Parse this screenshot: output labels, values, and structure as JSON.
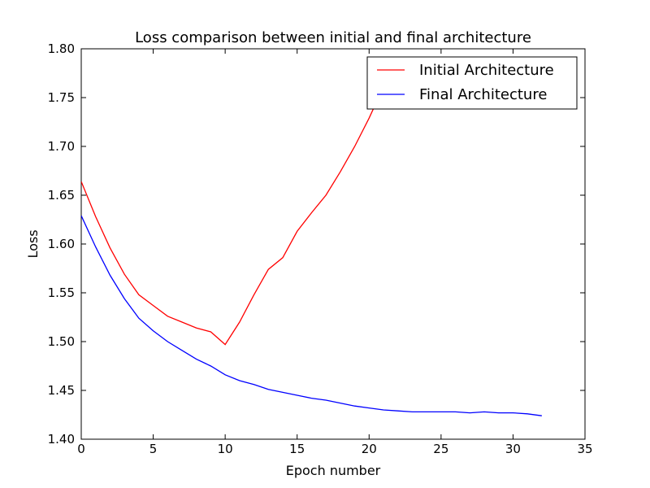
{
  "chart_data": {
    "type": "line",
    "title": "Loss comparison between initial and final architecture",
    "xlabel": "Epoch number",
    "ylabel": "Loss",
    "xlim": [
      0,
      35
    ],
    "ylim": [
      1.4,
      1.8
    ],
    "xticks": [
      0,
      5,
      10,
      15,
      20,
      25,
      30,
      35
    ],
    "yticks": [
      1.4,
      1.45,
      1.5,
      1.55,
      1.6,
      1.65,
      1.7,
      1.75,
      1.8
    ],
    "xtick_labels": [
      "0",
      "5",
      "10",
      "15",
      "20",
      "25",
      "30",
      "35"
    ],
    "ytick_labels": [
      "1.40",
      "1.45",
      "1.50",
      "1.55",
      "1.60",
      "1.65",
      "1.70",
      "1.75",
      "1.80"
    ],
    "grid": false,
    "legend_position": "top-right",
    "series": [
      {
        "name": "Initial Architecture",
        "color": "#ff0000",
        "x": [
          0,
          1,
          2,
          3,
          4,
          5,
          6,
          7,
          8,
          9,
          10,
          11,
          12,
          13,
          14,
          15,
          16,
          17,
          18,
          19,
          20,
          21,
          22
        ],
        "y": [
          1.664,
          1.628,
          1.596,
          1.569,
          1.548,
          1.537,
          1.526,
          1.52,
          1.514,
          1.51,
          1.497,
          1.52,
          1.548,
          1.574,
          1.586,
          1.613,
          1.632,
          1.65,
          1.674,
          1.7,
          1.729,
          1.761,
          1.79
        ]
      },
      {
        "name": "Final Architecture",
        "color": "#0000ff",
        "x": [
          0,
          1,
          2,
          3,
          4,
          5,
          6,
          7,
          8,
          9,
          10,
          11,
          12,
          13,
          14,
          15,
          16,
          17,
          18,
          19,
          20,
          21,
          22,
          23,
          24,
          25,
          26,
          27,
          28,
          29,
          30,
          31,
          32
        ],
        "y": [
          1.629,
          1.597,
          1.568,
          1.544,
          1.524,
          1.511,
          1.5,
          1.491,
          1.482,
          1.475,
          1.466,
          1.46,
          1.456,
          1.451,
          1.448,
          1.445,
          1.442,
          1.44,
          1.437,
          1.434,
          1.432,
          1.43,
          1.429,
          1.428,
          1.428,
          1.428,
          1.428,
          1.427,
          1.428,
          1.427,
          1.427,
          1.426,
          1.424
        ]
      }
    ]
  }
}
